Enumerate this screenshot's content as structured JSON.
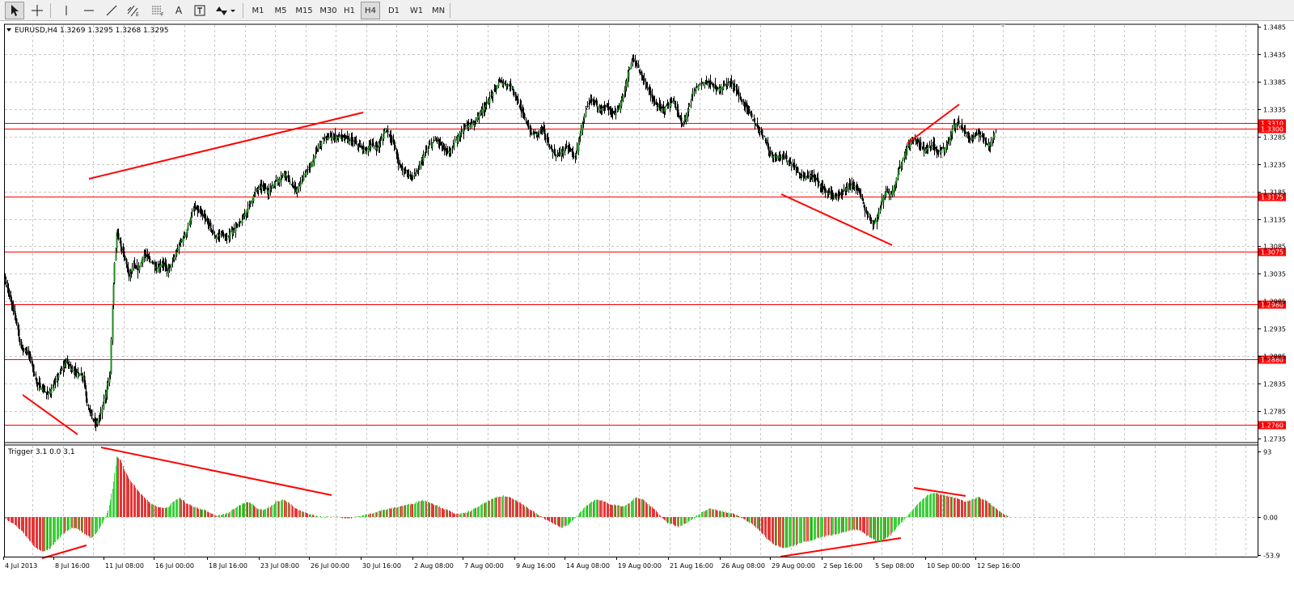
{
  "toolbar": {
    "timeframes": [
      "M1",
      "M5",
      "M15",
      "M30",
      "H1",
      "H4",
      "D1",
      "W1",
      "MN"
    ],
    "active_timeframe": "H4",
    "tools": [
      "cursor-icon",
      "crosshair-icon",
      "vertical-line-icon",
      "horizontal-line-icon",
      "trendline-icon",
      "equidistant-channel-icon",
      "fibonacci-icon",
      "text-icon",
      "text-label-icon",
      "arrows-icon"
    ]
  },
  "main_chart": {
    "title": "EURUSD,H4  1.3269 1.3295 1.3268 1.3295",
    "price_min": 1.2735,
    "price_max": 1.3485,
    "price_ticks": [
      "1.3485",
      "1.3435",
      "1.3385",
      "1.3335",
      "1.3285",
      "1.3235",
      "1.3185",
      "1.3135",
      "1.3085",
      "1.3035",
      "1.2985",
      "1.2935",
      "1.2885",
      "1.2835",
      "1.2785",
      "1.2735"
    ],
    "levels": [
      {
        "label": "1.3310",
        "value": 1.331
      },
      {
        "label": "1.3300",
        "value": 1.33
      },
      {
        "label": "1.3175",
        "value": 1.3175
      },
      {
        "label": "1.3075",
        "value": 1.3075
      },
      {
        "label": "1.2980",
        "value": 1.298
      },
      {
        "label": "1.2880",
        "value": 1.288
      },
      {
        "label": "1.2760",
        "value": 1.276
      }
    ],
    "level_color": "#ff0000",
    "bull_color": "#1f8a1f",
    "bear_color": "#000000",
    "path": [
      [
        0,
        1.3025
      ],
      [
        5,
        1.2985
      ],
      [
        10,
        1.2955
      ],
      [
        15,
        1.29
      ],
      [
        20,
        1.2895
      ],
      [
        24,
        1.288
      ],
      [
        30,
        1.2835
      ],
      [
        36,
        1.2825
      ],
      [
        40,
        1.2815
      ],
      [
        46,
        1.283
      ],
      [
        52,
        1.2855
      ],
      [
        58,
        1.2875
      ],
      [
        64,
        1.286
      ],
      [
        68,
        1.2855
      ],
      [
        74,
        1.285
      ],
      [
        78,
        1.28
      ],
      [
        82,
        1.2775
      ],
      [
        86,
        1.276
      ],
      [
        90,
        1.2775
      ],
      [
        96,
        1.282
      ],
      [
        100,
        1.2855
      ],
      [
        102,
        1.2975
      ],
      [
        104,
        1.3055
      ],
      [
        106,
        1.311
      ],
      [
        110,
        1.3085
      ],
      [
        114,
        1.306
      ],
      [
        118,
        1.303
      ],
      [
        122,
        1.305
      ],
      [
        126,
        1.304
      ],
      [
        132,
        1.307
      ],
      [
        138,
        1.306
      ],
      [
        144,
        1.3045
      ],
      [
        150,
        1.3055
      ],
      [
        154,
        1.304
      ],
      [
        160,
        1.306
      ],
      [
        166,
        1.309
      ],
      [
        172,
        1.311
      ],
      [
        176,
        1.3135
      ],
      [
        180,
        1.3155
      ],
      [
        186,
        1.3145
      ],
      [
        192,
        1.313
      ],
      [
        196,
        1.3115
      ],
      [
        200,
        1.31
      ],
      [
        206,
        1.311
      ],
      [
        210,
        1.3095
      ],
      [
        214,
        1.311
      ],
      [
        220,
        1.312
      ],
      [
        226,
        1.3135
      ],
      [
        232,
        1.316
      ],
      [
        238,
        1.3185
      ],
      [
        244,
        1.3195
      ],
      [
        250,
        1.3185
      ],
      [
        256,
        1.32
      ],
      [
        262,
        1.321
      ],
      [
        266,
        1.322
      ],
      [
        270,
        1.3205
      ],
      [
        276,
        1.3185
      ],
      [
        280,
        1.3195
      ],
      [
        284,
        1.3215
      ],
      [
        290,
        1.323
      ],
      [
        296,
        1.326
      ],
      [
        302,
        1.328
      ],
      [
        310,
        1.3285
      ],
      [
        318,
        1.3285
      ],
      [
        326,
        1.328
      ],
      [
        332,
        1.3275
      ],
      [
        338,
        1.3265
      ],
      [
        342,
        1.326
      ],
      [
        348,
        1.327
      ],
      [
        354,
        1.3265
      ],
      [
        358,
        1.328
      ],
      [
        362,
        1.33
      ],
      [
        366,
        1.3285
      ],
      [
        370,
        1.327
      ],
      [
        374,
        1.3235
      ],
      [
        378,
        1.3225
      ],
      [
        382,
        1.322
      ],
      [
        386,
        1.321
      ],
      [
        392,
        1.322
      ],
      [
        398,
        1.325
      ],
      [
        404,
        1.327
      ],
      [
        410,
        1.328
      ],
      [
        414,
        1.327
      ],
      [
        420,
        1.3255
      ],
      [
        424,
        1.326
      ],
      [
        428,
        1.3275
      ],
      [
        432,
        1.329
      ],
      [
        436,
        1.33
      ],
      [
        440,
        1.3305
      ],
      [
        446,
        1.331
      ],
      [
        452,
        1.333
      ],
      [
        458,
        1.3345
      ],
      [
        464,
        1.3365
      ],
      [
        470,
        1.3385
      ],
      [
        476,
        1.338
      ],
      [
        482,
        1.3375
      ],
      [
        486,
        1.3355
      ],
      [
        490,
        1.3335
      ],
      [
        496,
        1.331
      ],
      [
        500,
        1.329
      ],
      [
        506,
        1.329
      ],
      [
        510,
        1.33
      ],
      [
        514,
        1.3285
      ],
      [
        518,
        1.3265
      ],
      [
        524,
        1.325
      ],
      [
        528,
        1.3255
      ],
      [
        534,
        1.3265
      ],
      [
        538,
        1.326
      ],
      [
        542,
        1.3245
      ],
      [
        548,
        1.33
      ],
      [
        552,
        1.333
      ],
      [
        556,
        1.335
      ],
      [
        560,
        1.335
      ],
      [
        566,
        1.3335
      ],
      [
        572,
        1.334
      ],
      [
        576,
        1.333
      ],
      [
        580,
        1.3325
      ],
      [
        584,
        1.334
      ],
      [
        588,
        1.336
      ],
      [
        592,
        1.3395
      ],
      [
        596,
        1.3425
      ],
      [
        600,
        1.342
      ],
      [
        604,
        1.34
      ],
      [
        608,
        1.3385
      ],
      [
        612,
        1.337
      ],
      [
        616,
        1.335
      ],
      [
        620,
        1.334
      ],
      [
        626,
        1.3335
      ],
      [
        632,
        1.3345
      ],
      [
        636,
        1.335
      ],
      [
        640,
        1.3325
      ],
      [
        644,
        1.3305
      ],
      [
        650,
        1.3335
      ],
      [
        654,
        1.3365
      ],
      [
        660,
        1.338
      ],
      [
        666,
        1.3385
      ],
      [
        672,
        1.338
      ],
      [
        676,
        1.337
      ],
      [
        682,
        1.3375
      ],
      [
        688,
        1.3385
      ],
      [
        694,
        1.3375
      ],
      [
        700,
        1.335
      ],
      [
        706,
        1.3335
      ],
      [
        710,
        1.332
      ],
      [
        714,
        1.3305
      ],
      [
        718,
        1.3295
      ],
      [
        722,
        1.3285
      ],
      [
        726,
        1.326
      ],
      [
        730,
        1.325
      ],
      [
        736,
        1.325
      ],
      [
        742,
        1.3245
      ],
      [
        748,
        1.3235
      ],
      [
        752,
        1.3225
      ],
      [
        756,
        1.3215
      ],
      [
        762,
        1.321
      ],
      [
        766,
        1.3215
      ],
      [
        772,
        1.3205
      ],
      [
        776,
        1.3195
      ],
      [
        780,
        1.3185
      ],
      [
        786,
        1.318
      ],
      [
        790,
        1.3175
      ],
      [
        796,
        1.318
      ],
      [
        800,
        1.319
      ],
      [
        806,
        1.32
      ],
      [
        810,
        1.319
      ],
      [
        814,
        1.3175
      ],
      [
        818,
        1.315
      ],
      [
        822,
        1.3135
      ],
      [
        826,
        1.3125
      ],
      [
        830,
        1.314
      ],
      [
        834,
        1.317
      ],
      [
        838,
        1.3185
      ],
      [
        842,
        1.318
      ],
      [
        846,
        1.3195
      ],
      [
        850,
        1.3225
      ],
      [
        854,
        1.3245
      ],
      [
        858,
        1.3265
      ],
      [
        862,
        1.3275
      ],
      [
        866,
        1.328
      ],
      [
        870,
        1.327
      ],
      [
        874,
        1.326
      ],
      [
        878,
        1.3265
      ],
      [
        882,
        1.327
      ],
      [
        886,
        1.3255
      ],
      [
        890,
        1.326
      ],
      [
        894,
        1.3265
      ],
      [
        898,
        1.328
      ],
      [
        902,
        1.3305
      ],
      [
        906,
        1.331
      ],
      [
        910,
        1.33
      ],
      [
        914,
        1.329
      ],
      [
        918,
        1.328
      ],
      [
        922,
        1.3285
      ],
      [
        926,
        1.329
      ],
      [
        930,
        1.3285
      ],
      [
        934,
        1.327
      ],
      [
        938,
        1.3275
      ],
      [
        942,
        1.3295
      ]
    ]
  },
  "indicator": {
    "title": "Trigger 3.1 0.0 3.1",
    "axis_labels": [
      "93",
      "0.00",
      "-53.9"
    ],
    "axis_values": [
      93,
      0,
      -53.9
    ],
    "min": -53.9,
    "max": 93,
    "up_color": "#3cd03c",
    "down_color": "#e23636",
    "path": [
      [
        0,
        -2
      ],
      [
        8,
        -10
      ],
      [
        16,
        -20
      ],
      [
        24,
        -35
      ],
      [
        30,
        -45
      ],
      [
        36,
        -50
      ],
      [
        42,
        -45
      ],
      [
        48,
        -35
      ],
      [
        54,
        -25
      ],
      [
        58,
        -20
      ],
      [
        64,
        -15
      ],
      [
        70,
        -18
      ],
      [
        76,
        -25
      ],
      [
        82,
        -30
      ],
      [
        88,
        -20
      ],
      [
        94,
        -5
      ],
      [
        98,
        10
      ],
      [
        102,
        40
      ],
      [
        106,
        85
      ],
      [
        110,
        80
      ],
      [
        114,
        65
      ],
      [
        120,
        50
      ],
      [
        126,
        38
      ],
      [
        132,
        28
      ],
      [
        138,
        20
      ],
      [
        144,
        15
      ],
      [
        150,
        12
      ],
      [
        156,
        15
      ],
      [
        160,
        22
      ],
      [
        166,
        28
      ],
      [
        172,
        20
      ],
      [
        178,
        15
      ],
      [
        184,
        12
      ],
      [
        190,
        10
      ],
      [
        196,
        5
      ],
      [
        200,
        2
      ],
      [
        206,
        3
      ],
      [
        212,
        6
      ],
      [
        218,
        12
      ],
      [
        224,
        18
      ],
      [
        230,
        22
      ],
      [
        236,
        18
      ],
      [
        240,
        12
      ],
      [
        246,
        10
      ],
      [
        252,
        15
      ],
      [
        258,
        22
      ],
      [
        264,
        25
      ],
      [
        270,
        20
      ],
      [
        276,
        12
      ],
      [
        282,
        8
      ],
      [
        288,
        5
      ],
      [
        296,
        1
      ],
      [
        304,
        0
      ],
      [
        312,
        1
      ],
      [
        318,
        0
      ],
      [
        324,
        -2
      ],
      [
        330,
        -1
      ],
      [
        336,
        1
      ],
      [
        342,
        3
      ],
      [
        348,
        5
      ],
      [
        354,
        8
      ],
      [
        360,
        10
      ],
      [
        366,
        12
      ],
      [
        372,
        14
      ],
      [
        378,
        16
      ],
      [
        384,
        18
      ],
      [
        390,
        20
      ],
      [
        396,
        24
      ],
      [
        402,
        22
      ],
      [
        408,
        18
      ],
      [
        414,
        14
      ],
      [
        420,
        10
      ],
      [
        426,
        6
      ],
      [
        432,
        4
      ],
      [
        438,
        6
      ],
      [
        444,
        10
      ],
      [
        450,
        15
      ],
      [
        456,
        20
      ],
      [
        462,
        25
      ],
      [
        468,
        28
      ],
      [
        474,
        30
      ],
      [
        480,
        28
      ],
      [
        486,
        24
      ],
      [
        492,
        18
      ],
      [
        498,
        12
      ],
      [
        504,
        6
      ],
      [
        510,
        0
      ],
      [
        516,
        -5
      ],
      [
        522,
        -10
      ],
      [
        528,
        -15
      ],
      [
        534,
        -12
      ],
      [
        540,
        -5
      ],
      [
        546,
        5
      ],
      [
        552,
        15
      ],
      [
        558,
        22
      ],
      [
        564,
        25
      ],
      [
        570,
        22
      ],
      [
        576,
        18
      ],
      [
        582,
        16
      ],
      [
        588,
        15
      ],
      [
        594,
        20
      ],
      [
        600,
        28
      ],
      [
        606,
        25
      ],
      [
        612,
        18
      ],
      [
        618,
        10
      ],
      [
        624,
        0
      ],
      [
        630,
        -8
      ],
      [
        636,
        -12
      ],
      [
        640,
        -14
      ],
      [
        646,
        -10
      ],
      [
        652,
        -5
      ],
      [
        658,
        2
      ],
      [
        664,
        8
      ],
      [
        670,
        12
      ],
      [
        676,
        10
      ],
      [
        682,
        8
      ],
      [
        688,
        6
      ],
      [
        694,
        4
      ],
      [
        700,
        0
      ],
      [
        706,
        -6
      ],
      [
        712,
        -12
      ],
      [
        718,
        -20
      ],
      [
        724,
        -30
      ],
      [
        730,
        -38
      ],
      [
        736,
        -42
      ],
      [
        742,
        -44
      ],
      [
        748,
        -42
      ],
      [
        754,
        -38
      ],
      [
        760,
        -35
      ],
      [
        766,
        -34
      ],
      [
        772,
        -30
      ],
      [
        778,
        -28
      ],
      [
        784,
        -26
      ],
      [
        790,
        -24
      ],
      [
        796,
        -22
      ],
      [
        802,
        -20
      ],
      [
        808,
        -18
      ],
      [
        814,
        -20
      ],
      [
        818,
        -25
      ],
      [
        824,
        -30
      ],
      [
        830,
        -35
      ],
      [
        836,
        -32
      ],
      [
        842,
        -25
      ],
      [
        848,
        -15
      ],
      [
        854,
        -5
      ],
      [
        860,
        5
      ],
      [
        866,
        15
      ],
      [
        872,
        25
      ],
      [
        878,
        32
      ],
      [
        884,
        34
      ],
      [
        890,
        32
      ],
      [
        896,
        30
      ],
      [
        902,
        28
      ],
      [
        908,
        25
      ],
      [
        914,
        22
      ],
      [
        920,
        25
      ],
      [
        926,
        28
      ],
      [
        932,
        24
      ],
      [
        938,
        18
      ],
      [
        942,
        12
      ],
      [
        946,
        8
      ],
      [
        950,
        4
      ],
      [
        954,
        2
      ]
    ]
  },
  "time_axis": {
    "labels": [
      "4 Jul 2013",
      "8 Jul 16:00",
      "11 Jul 08:00",
      "16 Jul 00:00",
      "18 Jul 16:00",
      "23 Jul 08:00",
      "26 Jul 00:00",
      "30 Jul 16:00",
      "2 Aug 08:00",
      "7 Aug 00:00",
      "9 Aug 16:00",
      "14 Aug 08:00",
      "19 Aug 00:00",
      "21 Aug 16:00",
      "26 Aug 08:00",
      "29 Aug 00:00",
      "2 Sep 16:00",
      "5 Sep 08:00",
      "10 Sep 00:00",
      "12 Sep 16:00"
    ]
  }
}
